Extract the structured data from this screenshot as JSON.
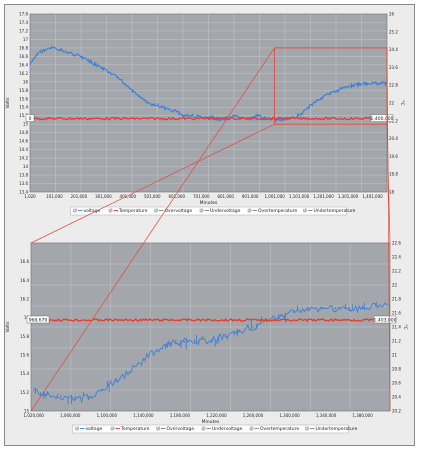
{
  "chart_data": [
    {
      "type": "line",
      "xlabel": "Minutes",
      "ylabel": "Volts",
      "y2label": "°C",
      "xlim": [
        1020,
        1460000
      ],
      "ylim": [
        13.4,
        17.6
      ],
      "y2lim": [
        18,
        26
      ],
      "x_ticks": [
        1020,
        100800,
        200800,
        300800,
        400800,
        500800,
        600800,
        700800,
        800800,
        900800,
        1000800,
        1100800,
        1200800,
        1300800,
        1400800
      ],
      "x_tick_labels": [
        "1,020",
        "101,000",
        "201,000",
        "301,000",
        "401,000",
        "501,000",
        "601,000",
        "701,000",
        "801,000",
        "901,000",
        "1,001,000",
        "1,101,000",
        "1,201,000",
        "1,301,000",
        "1,401,000"
      ],
      "y_ticks": [
        13.4,
        13.6,
        13.8,
        14.0,
        14.2,
        14.4,
        14.6,
        14.8,
        15.0,
        15.2,
        15.4,
        15.6,
        15.8,
        16.0,
        16.2,
        16.4,
        16.6,
        16.8,
        17.0,
        17.2,
        17.4,
        17.6
      ],
      "y_tick_labels": [
        "13.4",
        "13.6",
        "13.8",
        "14",
        "14.2",
        "14.4",
        "14.6",
        "14.8",
        "15",
        "15.2",
        "15.4",
        "15.6",
        "15.8",
        "16",
        "16.2",
        "16.4",
        "16.6",
        "16.8",
        "17",
        "17.2",
        "17.4",
        "17.6"
      ],
      "y2_ticks": [
        18,
        18.8,
        19.6,
        20.4,
        21.2,
        22,
        22.8,
        23.6,
        24.4,
        25.2,
        26
      ],
      "y2_tick_labels": [
        "18",
        "18.8",
        "19.6",
        "20.4",
        "21.2",
        "22",
        "22.8",
        "23.6",
        "24.4",
        "25.2",
        "26"
      ],
      "cursor_left_label": "0",
      "cursor_right_label": "1,400,000",
      "zoom_box": {
        "x0": 1000000,
        "x1": 1460000,
        "y0": 15.0,
        "y1": 16.8
      },
      "series": [
        {
          "name": "voltage",
          "color": "#3d7fd6",
          "x": [
            1020,
            30000,
            60000,
            90000,
            120000,
            150000,
            180000,
            210000,
            240000,
            270000,
            300000,
            330000,
            360000,
            390000,
            420000,
            450000,
            480000,
            510000,
            540000,
            570000,
            600000,
            630000,
            660000,
            690000,
            720000,
            750000,
            780000,
            810000,
            840000,
            870000,
            900000,
            930000,
            960000,
            990000,
            1020000,
            1050000,
            1080000,
            1110000,
            1140000,
            1170000,
            1200000,
            1230000,
            1260000,
            1290000,
            1320000,
            1350000,
            1380000,
            1410000,
            1440000,
            1460000
          ],
          "y": [
            16.4,
            16.65,
            16.75,
            16.8,
            16.75,
            16.7,
            16.65,
            16.6,
            16.5,
            16.4,
            16.3,
            16.2,
            16.1,
            15.95,
            15.8,
            15.65,
            15.5,
            15.45,
            15.4,
            15.35,
            15.3,
            15.2,
            15.2,
            15.18,
            15.15,
            15.15,
            15.12,
            15.15,
            15.18,
            15.15,
            15.12,
            15.2,
            15.15,
            15.12,
            15.1,
            15.12,
            15.15,
            15.25,
            15.4,
            15.55,
            15.65,
            15.72,
            15.8,
            15.88,
            15.92,
            15.95,
            15.95,
            15.96,
            15.96,
            15.97
          ]
        },
        {
          "name": "Temperature",
          "color": "#e53a2e",
          "x": [
            1020,
            1460000
          ],
          "y": [
            21.3,
            21.3
          ]
        }
      ],
      "legend": [
        "voltage",
        "Temperature",
        "Overvoltage",
        "Undervoltage",
        "Overtemperature",
        "Undertemperature"
      ],
      "legend_position": "bottom",
      "grid": true
    },
    {
      "type": "line",
      "xlabel": "Minutes",
      "ylabel": "Volts",
      "y2label": "°C",
      "xlim": [
        1017000,
        1410000
      ],
      "ylim": [
        15.0,
        16.8
      ],
      "y2lim": [
        20.2,
        22.6
      ],
      "x_ticks": [
        1020000,
        1060000,
        1100000,
        1140000,
        1180000,
        1220000,
        1260000,
        1300000,
        1340000,
        1380000
      ],
      "x_tick_labels": [
        "1,020,000",
        "1,060,000",
        "1,100,000",
        "1,140,000",
        "1,180,000",
        "1,220,000",
        "1,260,000",
        "1,300,000",
        "1,340,000",
        "1,380,000"
      ],
      "y_ticks": [
        15.0,
        15.2,
        15.4,
        15.6,
        15.8,
        16.0,
        16.2,
        16.4,
        16.6
      ],
      "y_tick_labels": [
        "15",
        "15.2",
        "15.4",
        "15.6",
        "15.8",
        "16",
        "16.2",
        "16.4",
        "16.6"
      ],
      "y2_ticks": [
        20.2,
        20.4,
        20.6,
        20.8,
        21.0,
        21.2,
        21.4,
        21.6,
        21.8,
        22.0,
        22.2,
        22.4,
        22.6
      ],
      "y2_tick_labels": [
        "20.2",
        "20.4",
        "20.6",
        "20.8",
        "21",
        "21.2",
        "21.4",
        "21.6",
        "21.8",
        "22",
        "22.2",
        "22.4",
        "22.6"
      ],
      "cursor_left_label": "968,679",
      "cursor_right_label": "1,403,000",
      "series": [
        {
          "name": "voltage",
          "color": "#3d7fd6",
          "x": [
            1020000,
            1035000,
            1050000,
            1065000,
            1080000,
            1095000,
            1110000,
            1125000,
            1140000,
            1155000,
            1170000,
            1185000,
            1200000,
            1215000,
            1230000,
            1245000,
            1260000,
            1275000,
            1290000,
            1305000,
            1320000,
            1335000,
            1350000,
            1365000,
            1380000,
            1395000,
            1410000
          ],
          "y": [
            15.22,
            15.18,
            15.16,
            15.12,
            15.15,
            15.22,
            15.32,
            15.42,
            15.55,
            15.66,
            15.72,
            15.74,
            15.74,
            15.76,
            15.8,
            15.86,
            15.9,
            15.96,
            16.02,
            16.06,
            16.08,
            16.1,
            16.1,
            16.08,
            16.1,
            16.12,
            16.12
          ]
        },
        {
          "name": "Temperature",
          "color": "#e53a2e",
          "x": [
            1017000,
            1410000
          ],
          "y": [
            21.5,
            21.5
          ]
        }
      ],
      "legend": [
        "voltage",
        "Temperature",
        "Overvoltage",
        "Undervoltage",
        "Overtemperature",
        "Undertemperature"
      ],
      "legend_position": "bottom",
      "grid": true
    }
  ]
}
